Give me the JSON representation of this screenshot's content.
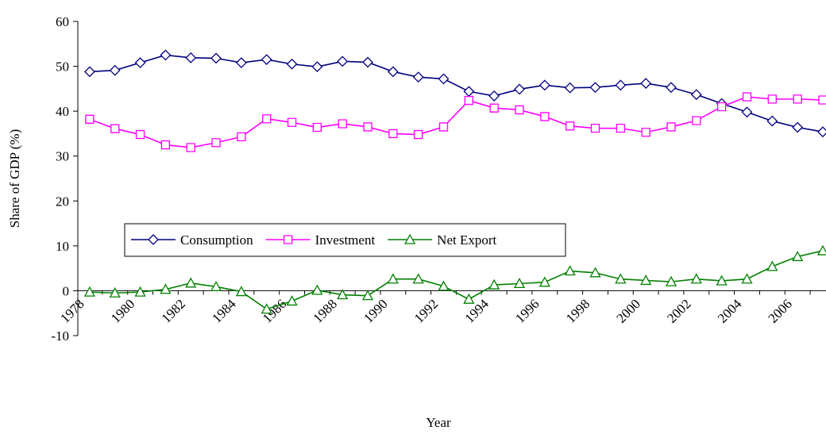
{
  "chart_data": {
    "type": "line",
    "y_label": "Share of GDP (%)",
    "x_label": "Year",
    "categories": [
      "1978",
      null,
      "1980",
      null,
      "1982",
      null,
      "1984",
      null,
      "1986",
      null,
      "1988",
      null,
      "1990",
      null,
      "1992",
      null,
      "1994",
      null,
      "1996",
      null,
      "1998",
      null,
      "2000",
      null,
      "2002",
      null,
      "2004",
      null,
      "2006",
      null
    ],
    "series": [
      {
        "name": "Consumption",
        "color": "#000080",
        "marker": "diamond",
        "values": [
          48.8,
          49.1,
          50.8,
          52.5,
          51.9,
          51.8,
          50.8,
          51.5,
          50.5,
          49.9,
          51.1,
          50.9,
          48.8,
          47.6,
          47.2,
          44.4,
          43.4,
          44.9,
          45.8,
          45.2,
          45.3,
          45.8,
          46.2,
          45.3,
          43.7,
          41.7,
          39.8,
          37.8,
          36.4,
          35.4
        ]
      },
      {
        "name": "Investment",
        "color": "#ff00ff",
        "marker": "square",
        "values": [
          38.2,
          36.1,
          34.8,
          32.5,
          31.9,
          33.0,
          34.3,
          38.3,
          37.5,
          36.4,
          37.2,
          36.5,
          35.0,
          34.8,
          36.5,
          42.4,
          40.7,
          40.3,
          38.8,
          36.7,
          36.2,
          36.2,
          35.3,
          36.5,
          37.9,
          41.0,
          43.2,
          42.7,
          42.7,
          42.5
        ]
      },
      {
        "name": "Net Export",
        "color": "#008000",
        "marker": "triangle",
        "values": [
          -0.3,
          -0.5,
          -0.3,
          0.3,
          1.7,
          0.9,
          -0.2,
          -4.1,
          -2.3,
          0.1,
          -0.9,
          -1.1,
          2.6,
          2.6,
          1.0,
          -1.9,
          1.3,
          1.6,
          1.9,
          4.4,
          4.0,
          2.6,
          2.3,
          2.0,
          2.6,
          2.2,
          2.6,
          5.4,
          7.6,
          8.9
        ]
      }
    ],
    "ylim": [
      -10,
      60
    ],
    "yticks": [
      -10,
      0,
      10,
      20,
      30,
      40,
      50,
      60
    ],
    "grid": false
  }
}
